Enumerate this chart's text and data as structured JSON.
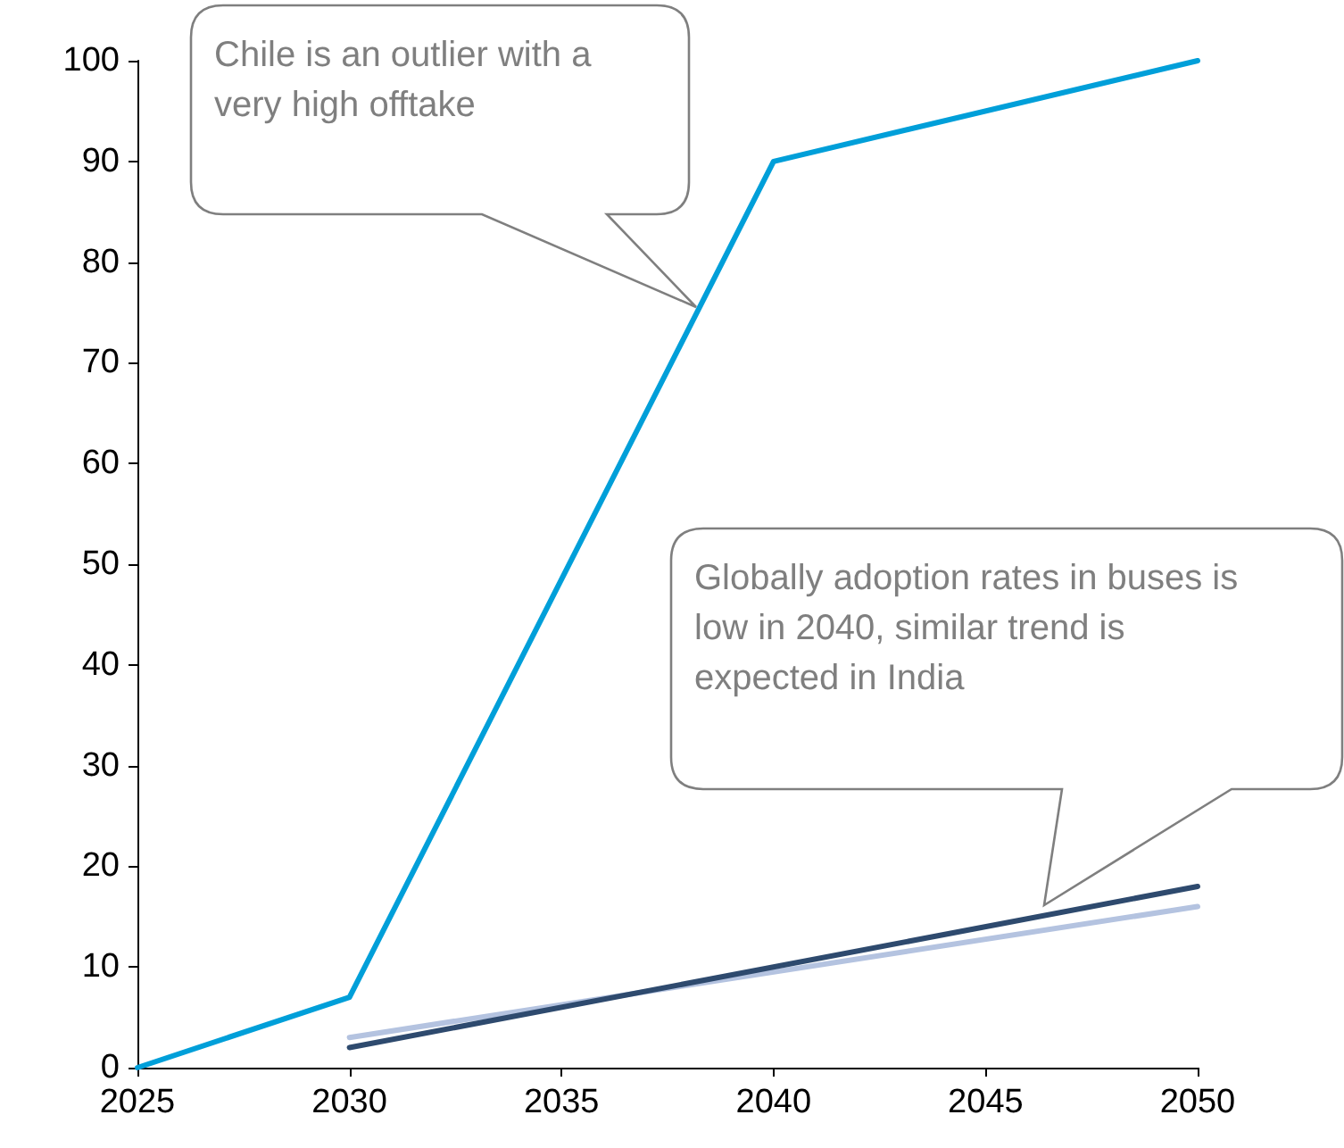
{
  "chart_data": {
    "type": "line",
    "series": [
      {
        "color": "#009fd9",
        "x": [
          2025,
          2030,
          2040,
          2050
        ],
        "values": [
          0,
          7,
          90,
          100
        ]
      },
      {
        "color": "#b4c3e0",
        "x": [
          2030,
          2050
        ],
        "values": [
          3,
          16
        ]
      },
      {
        "color": "#2e4a6e",
        "x": [
          2030,
          2050
        ],
        "values": [
          2,
          18
        ]
      }
    ],
    "xlim": [
      2025,
      2050
    ],
    "xticks": [
      2025,
      2030,
      2035,
      2040,
      2045,
      2050
    ],
    "ylim": [
      0,
      100
    ],
    "yticks": [
      0,
      10,
      20,
      30,
      40,
      50,
      60,
      70,
      80,
      90,
      100
    ],
    "grid": false,
    "marker": "none",
    "line_style": "solid",
    "annotations": [
      "Chile is an outlier with a very high offtake",
      "Globally adoption rates in buses is low in 2040, similar trend is expected in India"
    ]
  }
}
